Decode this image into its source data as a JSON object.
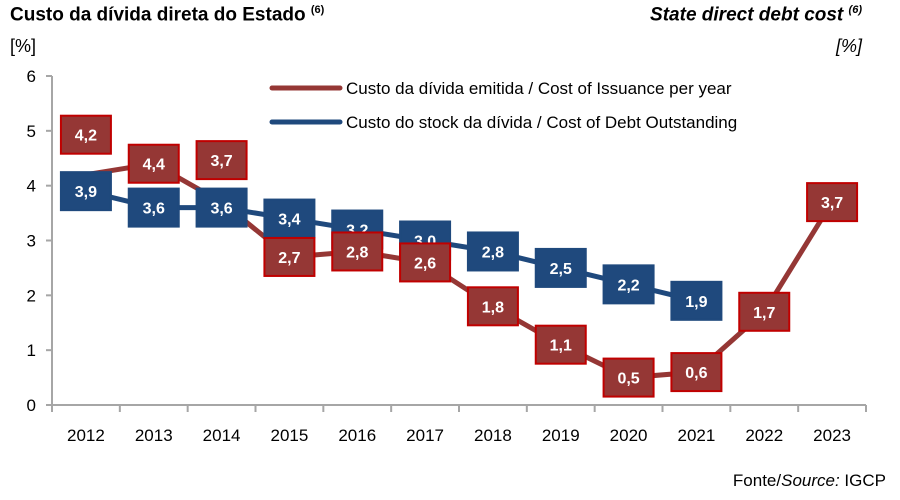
{
  "header": {
    "title_pt": "Custo da dívida direta do Estado",
    "title_pt_note": "(6)",
    "title_en": "State direct debt cost",
    "title_en_note": "(6)",
    "unit_pt": "[%]",
    "unit_en": "[%]"
  },
  "footer": {
    "source_prefix": "Fonte/",
    "source_italic": "Source:",
    "source_value": " IGCP"
  },
  "colors": {
    "issuance": "#953735",
    "issuance_border": "#C00000",
    "outstanding": "#1F497D",
    "axis": "#A6A6A6"
  },
  "chart_data": {
    "type": "line",
    "title": "Custo da dívida direta do Estado / State direct debt cost",
    "xlabel": "",
    "ylabel": "[%]",
    "ylim": [
      0,
      6
    ],
    "yticks": [
      0,
      1,
      2,
      3,
      4,
      5,
      6
    ],
    "grid": false,
    "legend_position": "top-right",
    "categories": [
      "2012",
      "2013",
      "2014",
      "2015",
      "2016",
      "2017",
      "2018",
      "2019",
      "2020",
      "2021",
      "2022",
      "2023"
    ],
    "series": [
      {
        "name": "Custo da dívida emitida / Cost of Issuance per year",
        "color": "#953735",
        "values": [
          4.2,
          4.4,
          3.7,
          2.7,
          2.8,
          2.6,
          1.8,
          1.1,
          0.5,
          0.6,
          1.7,
          3.7
        ],
        "labels": [
          "4,2",
          "4,4",
          "3,7",
          "2,7",
          "2,8",
          "2,6",
          "1,8",
          "1,1",
          "0,5",
          "0,6",
          "1,7",
          "3,7"
        ]
      },
      {
        "name": "Custo do stock da dívida / Cost of Debt Outstanding",
        "color": "#1F497D",
        "values": [
          3.9,
          3.6,
          3.6,
          3.4,
          3.2,
          3.0,
          2.8,
          2.5,
          2.2,
          1.9,
          null,
          null
        ],
        "labels": [
          "3,9",
          "3,6",
          "3,6",
          "3,4",
          "3,2",
          "3,0",
          "2,8",
          "2,5",
          "2,2",
          "1,9",
          null,
          null
        ]
      }
    ]
  }
}
